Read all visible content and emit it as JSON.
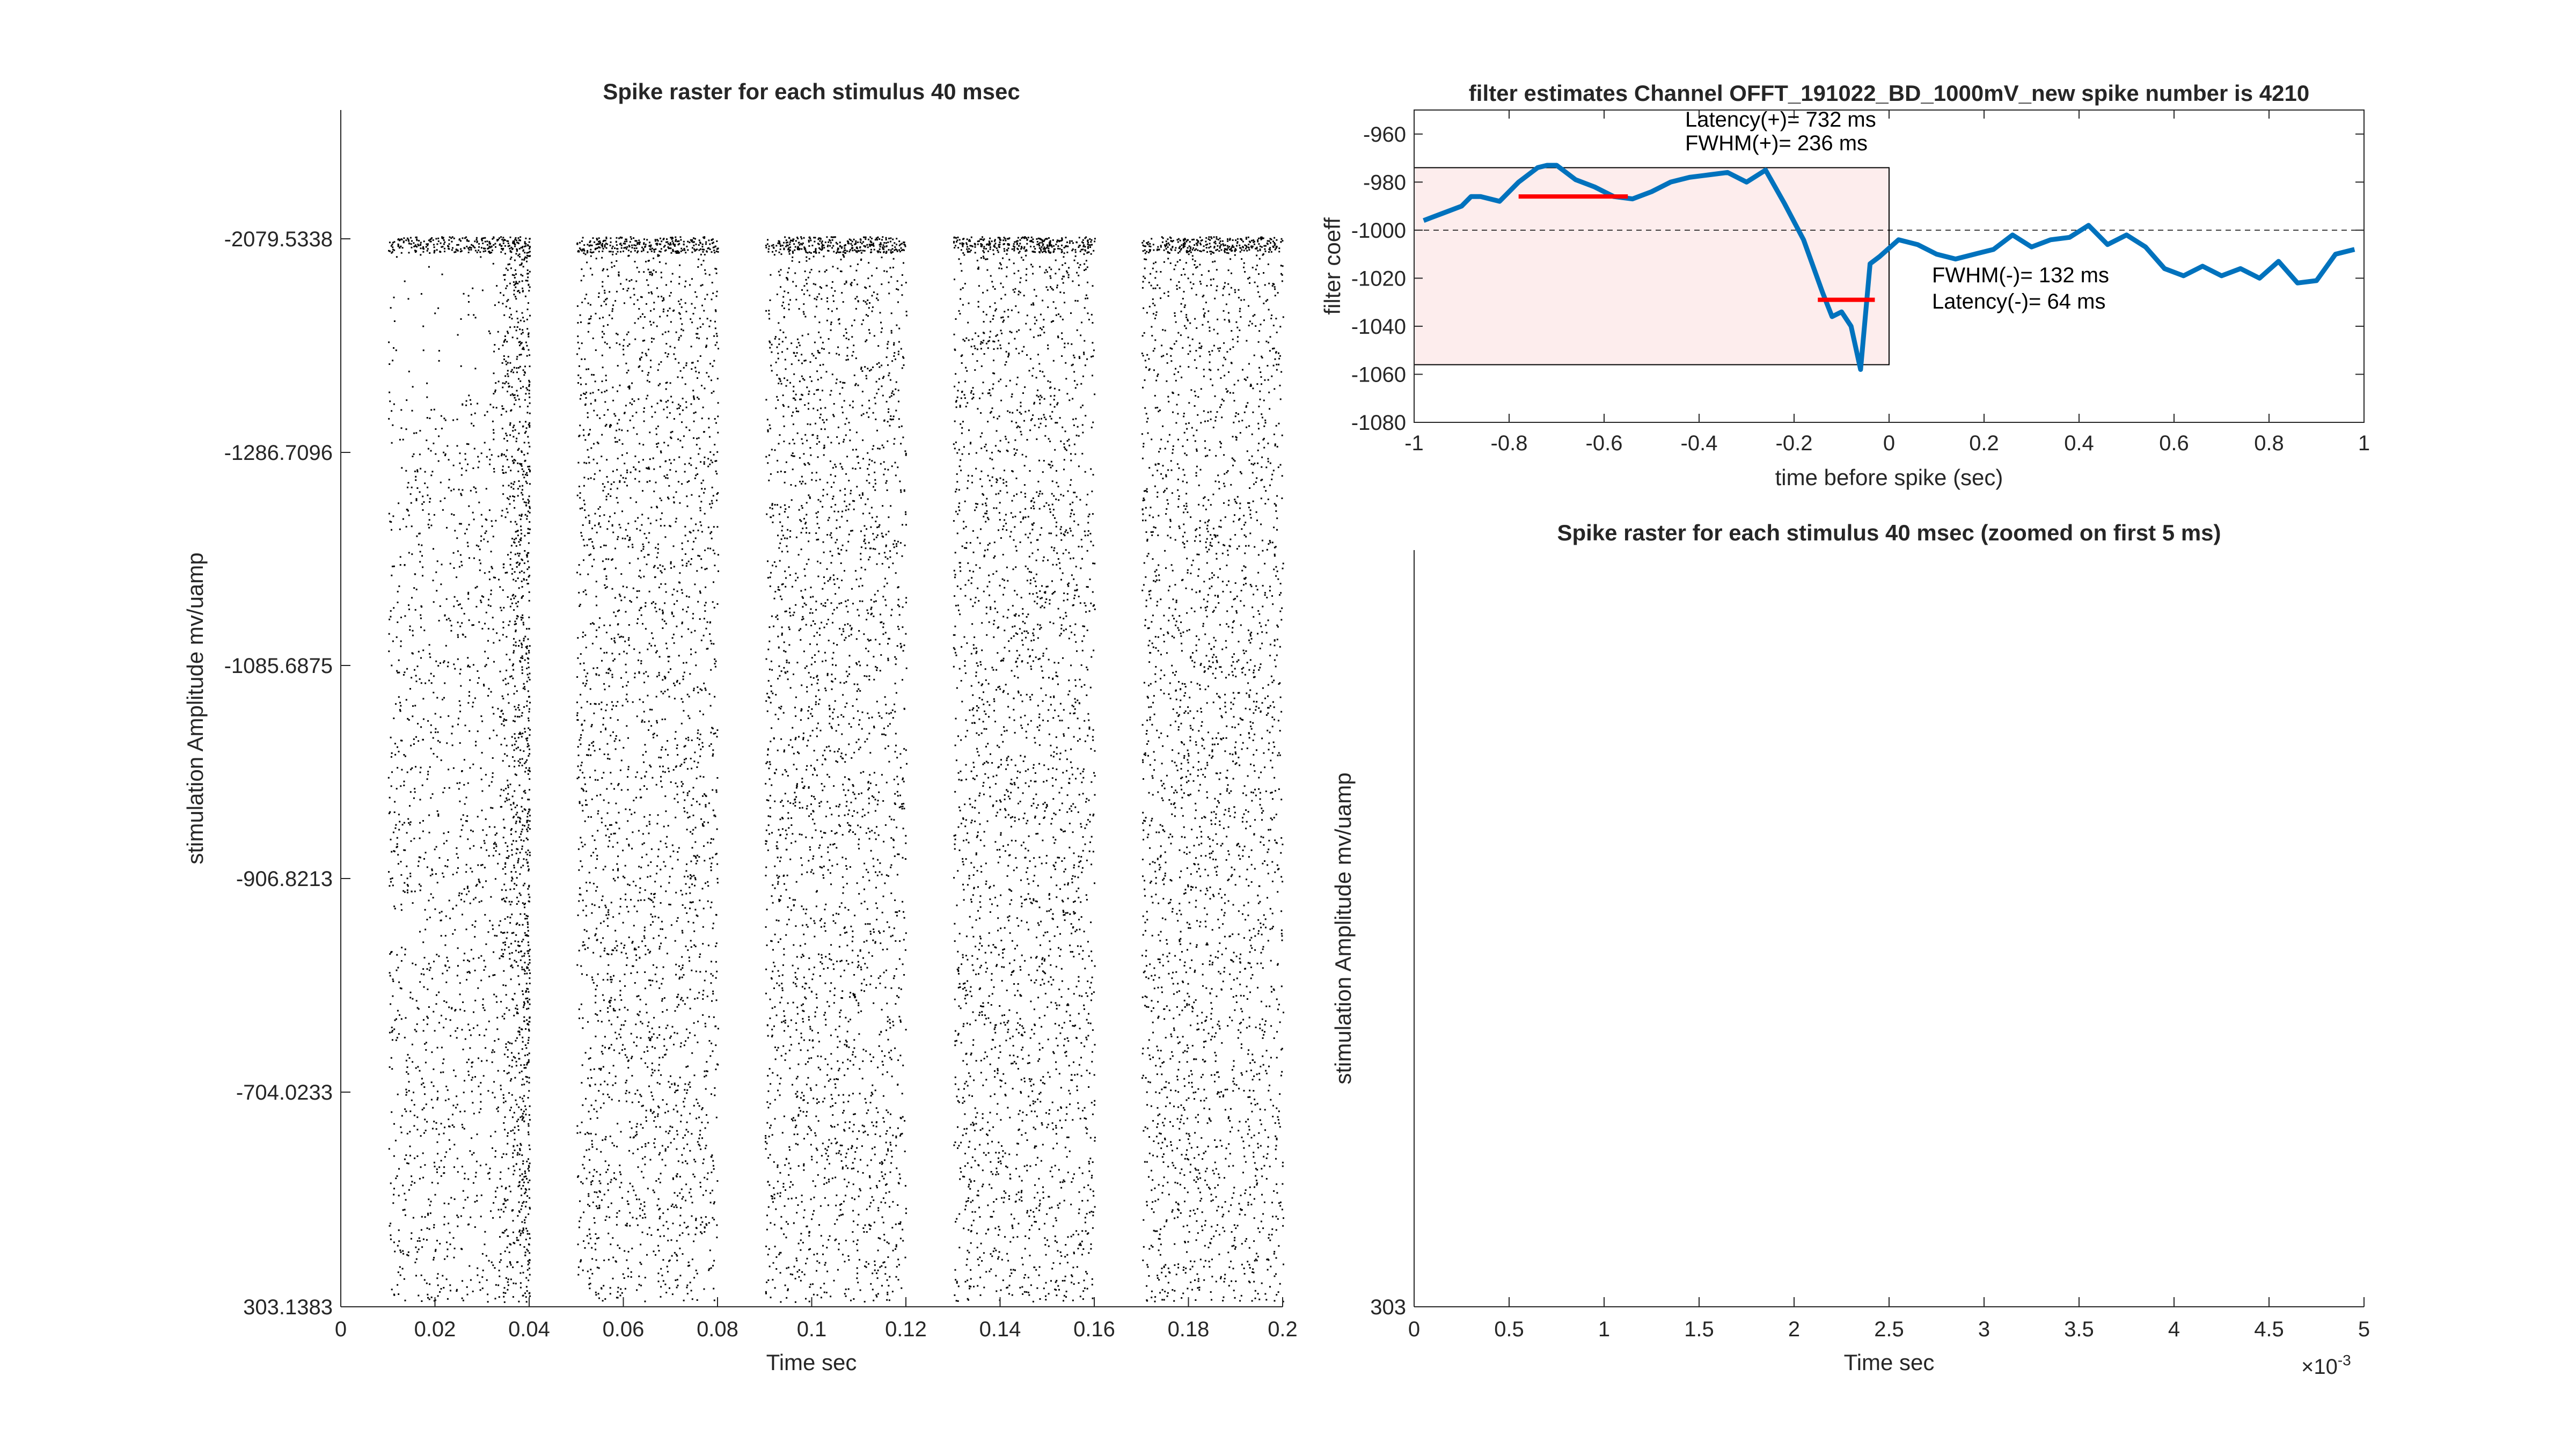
{
  "chart_data": [
    {
      "id": "raster_full",
      "type": "scatter",
      "title": "Spike raster for each stimulus 40 msec",
      "xlabel": "Time sec",
      "ylabel": "stimulation Amplitude  mv/uamp",
      "xlim": [
        0,
        0.2
      ],
      "xticks": [
        0,
        0.02,
        0.04,
        0.06,
        0.08,
        0.1,
        0.12,
        0.14,
        0.16,
        0.18,
        0.2
      ],
      "xtick_labels": [
        "0",
        "0.02",
        "0.04",
        "0.06",
        "0.08",
        "0.1",
        "0.12",
        "0.14",
        "0.16",
        "0.18",
        "0.2"
      ],
      "ytick_labels": [
        "-2079.5338",
        "-1286.7096",
        "-1085.6875",
        "-906.8213",
        "-704.0233",
        "303.1383"
      ],
      "y_direction": "reversed",
      "stimulus_windows": [
        [
          0.01,
          0.04
        ],
        [
          0.05,
          0.08
        ],
        [
          0.09,
          0.12
        ],
        [
          0.13,
          0.16
        ],
        [
          0.17,
          0.2
        ]
      ],
      "marker_color": "#000000",
      "grid": false
    },
    {
      "id": "filter_estimates",
      "type": "line",
      "title": "filter estimates  Channel  OFFT_191022_BD_1000mV_new  spike number is 4210",
      "xlabel": "time before spike (sec)",
      "ylabel": "filter coeff",
      "xlim": [
        -1,
        1
      ],
      "ylim": [
        -1080,
        -950
      ],
      "xticks": [
        -1,
        -0.8,
        -0.6,
        -0.4,
        -0.2,
        0,
        0.2,
        0.4,
        0.6,
        0.8,
        1
      ],
      "xtick_labels": [
        "-1",
        "-0.8",
        "-0.6",
        "-0.4",
        "-0.2",
        "0",
        "0.2",
        "0.4",
        "0.6",
        "0.8",
        "1"
      ],
      "yticks": [
        -960,
        -980,
        -1000,
        -1020,
        -1040,
        -1060,
        -1080
      ],
      "ytick_labels": [
        "-960",
        "-980",
        "-1000",
        "-1020",
        "-1040",
        "-1060",
        "-1080"
      ],
      "baseline": -1000,
      "series": [
        {
          "color": "#0072BD",
          "x": [
            -0.98,
            -0.94,
            -0.9,
            -0.88,
            -0.86,
            -0.82,
            -0.78,
            -0.74,
            -0.72,
            -0.7,
            -0.66,
            -0.62,
            -0.58,
            -0.54,
            -0.5,
            -0.46,
            -0.42,
            -0.38,
            -0.34,
            -0.3,
            -0.26,
            -0.22,
            -0.18,
            -0.14,
            -0.12,
            -0.1,
            -0.08,
            -0.06,
            -0.04,
            -0.02,
            0.02,
            0.06,
            0.1,
            0.14,
            0.18,
            0.22,
            0.26,
            0.3,
            0.34,
            0.38,
            0.42,
            0.46,
            0.5,
            0.54,
            0.58,
            0.62,
            0.66,
            0.7,
            0.74,
            0.78,
            0.82,
            0.86,
            0.9,
            0.94,
            0.98
          ],
          "y": [
            -996,
            -993,
            -990,
            -986,
            -986,
            -988,
            -980,
            -974,
            -973,
            -973,
            -979,
            -982,
            -986,
            -987,
            -984,
            -980,
            -978,
            -977,
            -976,
            -980,
            -975,
            -989,
            -1004,
            -1026,
            -1036,
            -1034,
            -1040,
            -1058,
            -1014,
            -1011,
            -1004,
            -1006,
            -1010,
            -1012,
            -1010,
            -1008,
            -1002,
            -1007,
            -1004,
            -1003,
            -998,
            -1006,
            -1002,
            -1007,
            -1016,
            -1019,
            -1015,
            -1019,
            -1016,
            -1020,
            -1013,
            -1022,
            -1021,
            -1010,
            -1008
          ]
        }
      ],
      "fwhm_segments": [
        {
          "x": [
            -0.78,
            -0.55
          ],
          "y": -986,
          "color": "#FF0000"
        },
        {
          "x": [
            -0.15,
            -0.03
          ],
          "y": -1029,
          "color": "#FF0000"
        }
      ],
      "shaded_region": {
        "x": [
          -1,
          0
        ],
        "y": [
          -1056,
          -974
        ],
        "color": "#FDEDED"
      },
      "annotations": {
        "latency_plus": "Latency(+)= 732 ms",
        "fwhm_plus": "FWHM(+)= 236 ms",
        "fwhm_minus": "FWHM(-)= 132 ms",
        "latency_minus": "Latency(-)= 64 ms"
      },
      "grid": false
    },
    {
      "id": "raster_zoomed",
      "type": "scatter",
      "title": "Spike raster for each stimulus 40 msec (zoomed on first 5 ms)",
      "xlabel": "Time sec",
      "ylabel": "stimulation Amplitude  mv/uamp",
      "xlim": [
        0,
        0.005
      ],
      "xticks": [
        0,
        0.0005,
        0.001,
        0.0015,
        0.002,
        0.0025,
        0.003,
        0.0035,
        0.004,
        0.0045,
        0.005
      ],
      "xtick_labels": [
        "0",
        "0.5",
        "1",
        "1.5",
        "2",
        "2.5",
        "3",
        "3.5",
        "4",
        "4.5",
        "5"
      ],
      "x_exponent_label": "×10",
      "x_exponent_power": "-3",
      "ytick_labels": [
        "303"
      ],
      "points": [],
      "grid": false
    }
  ]
}
